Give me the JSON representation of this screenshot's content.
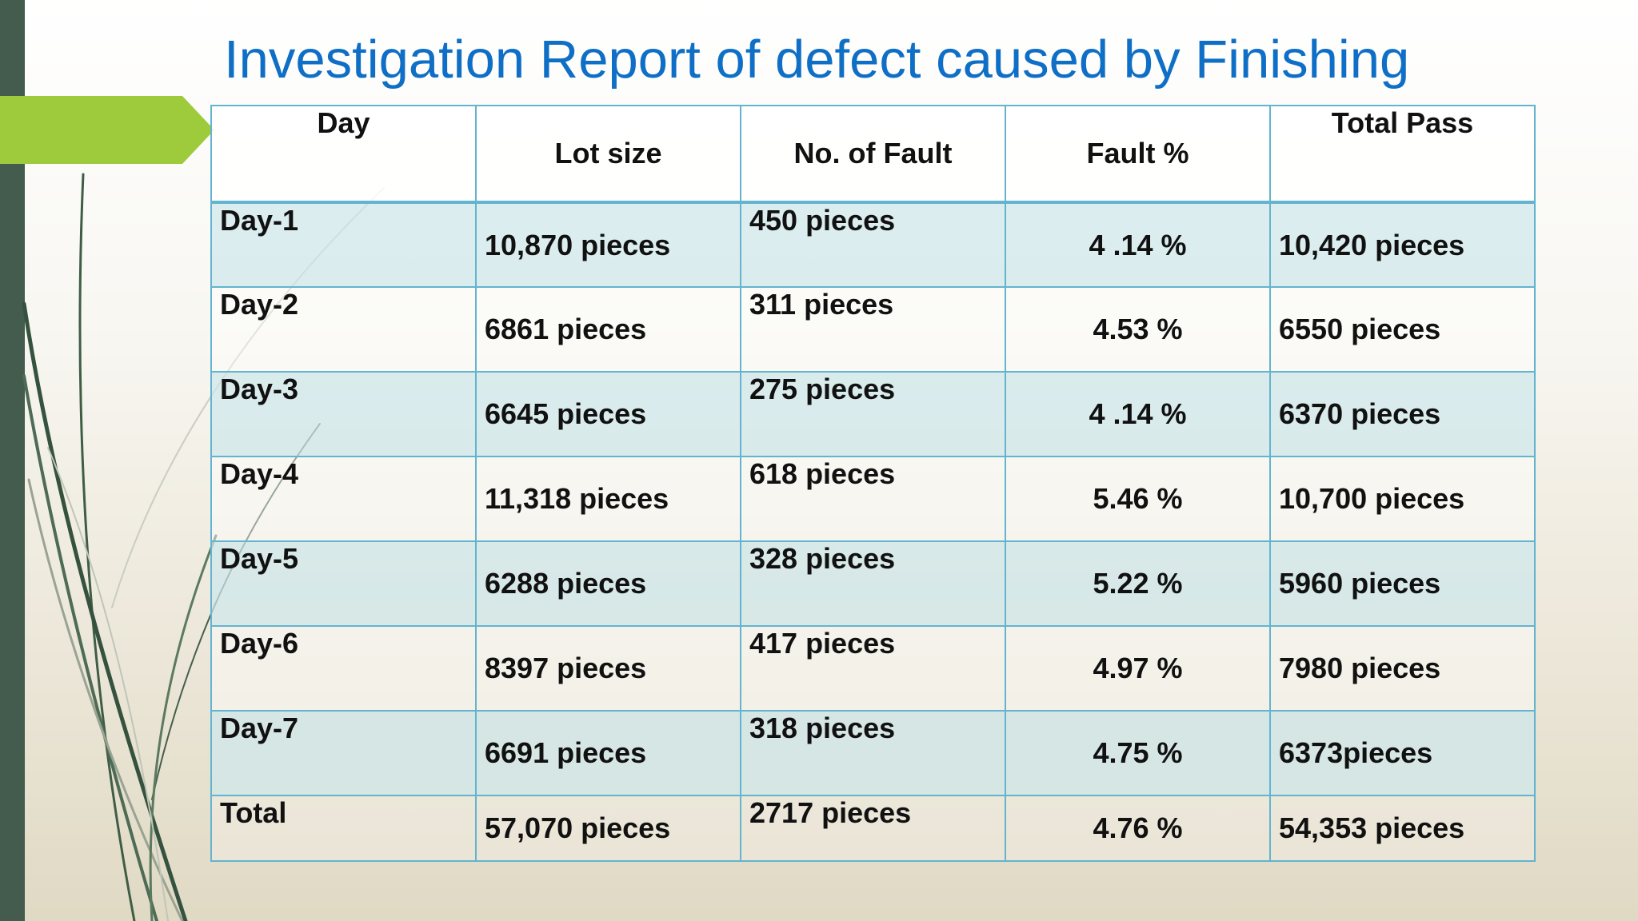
{
  "title": "Investigation Report of defect caused by Finishing",
  "colors": {
    "title": "#0f6fc6",
    "left_bar": "#435c4d",
    "arrow": "#9dcb3b",
    "table_border": "#63b4cf",
    "row_shade": "#cfe7ec"
  },
  "table": {
    "headers": [
      "Day",
      "Lot size",
      "No. of  Fault",
      "Fault %",
      "Total Pass"
    ],
    "rows": [
      {
        "day": "Day-1",
        "lot_size": "10,870 pieces",
        "faults": "450 pieces",
        "fault_pct": "4 .14 %",
        "total_pass": "10,420 pieces"
      },
      {
        "day": "Day-2",
        "lot_size": "6861 pieces",
        "faults": "311 pieces",
        "fault_pct": "4.53 %",
        "total_pass": "6550 pieces"
      },
      {
        "day": "Day-3",
        "lot_size": "6645 pieces",
        "faults": "275 pieces",
        "fault_pct": "4 .14 %",
        "total_pass": "6370 pieces"
      },
      {
        "day": "Day-4",
        "lot_size": "11,318 pieces",
        "faults": "618 pieces",
        "fault_pct": "5.46 %",
        "total_pass": "10,700 pieces"
      },
      {
        "day": "Day-5",
        "lot_size": "6288 pieces",
        "faults": "328 pieces",
        "fault_pct": "5.22 %",
        "total_pass": "5960 pieces"
      },
      {
        "day": "Day-6",
        "lot_size": "8397 pieces",
        "faults": "417 pieces",
        "fault_pct": "4.97 %",
        "total_pass": "7980 pieces"
      },
      {
        "day": "Day-7",
        "lot_size": "6691 pieces",
        "faults": "318 pieces",
        "fault_pct": "4.75 %",
        "total_pass": "6373pieces"
      },
      {
        "day": "Total",
        "lot_size": "57,070 pieces",
        "faults": "2717 pieces",
        "fault_pct": "4.76 %",
        "total_pass": "54,353 pieces"
      }
    ]
  }
}
